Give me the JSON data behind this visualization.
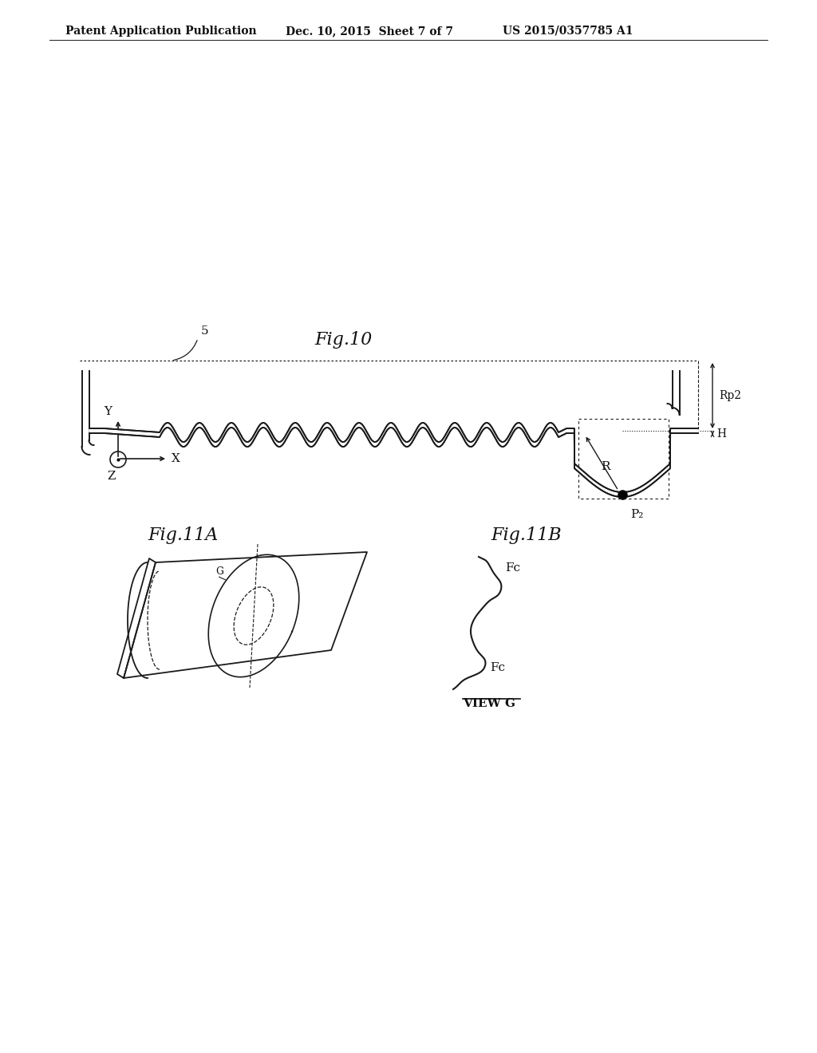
{
  "background_color": "#ffffff",
  "header_left": "Patent Application Publication",
  "header_mid": "Dec. 10, 2015  Sheet 7 of 7",
  "header_right": "US 2015/0357785 A1",
  "fig10_title": "Fig.10",
  "fig11a_title": "Fig.11A",
  "fig11b_title": "Fig.11B",
  "label_5": "5",
  "label_R": "R",
  "label_H": "H",
  "label_Rp2": "Rp2",
  "label_P2": "P₂",
  "label_Y": "Y",
  "label_X": "X",
  "label_Z": "Z",
  "label_G": "G",
  "label_Fc1": "Fc",
  "label_Fc2": "Fc",
  "label_viewG": "VIEW G",
  "line_color": "#1a1a1a",
  "text_color": "#111111"
}
